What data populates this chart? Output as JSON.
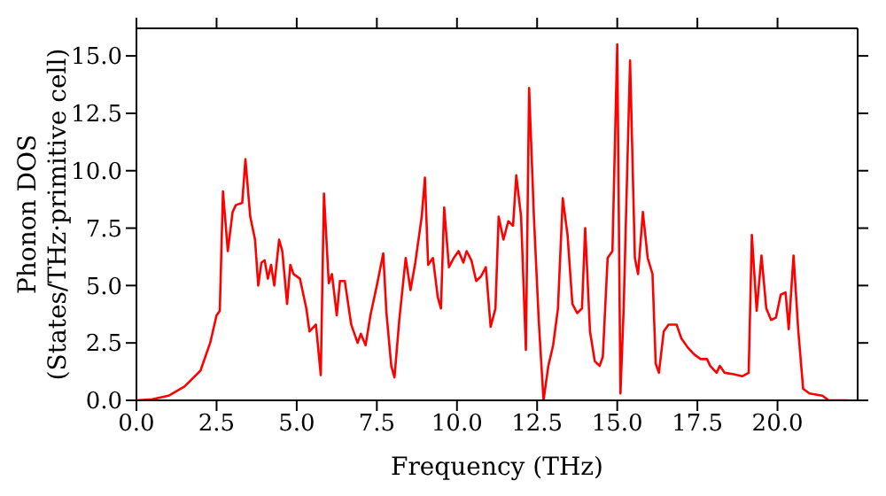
{
  "chart_data": {
    "type": "line",
    "xlabel": "Frequency (THz)",
    "ylabel": "Phonon DOS\n(States/THz·primitive cell)",
    "xlim": [
      0,
      22.5
    ],
    "ylim": [
      0,
      16.2
    ],
    "xticks": [
      {
        "value": 0,
        "label": "0.0"
      },
      {
        "value": 2.5,
        "label": "2.5"
      },
      {
        "value": 5,
        "label": "5.0"
      },
      {
        "value": 7.5,
        "label": "7.5"
      },
      {
        "value": 10,
        "label": "10.0"
      },
      {
        "value": 12.5,
        "label": "12.5"
      },
      {
        "value": 15,
        "label": "15.0"
      },
      {
        "value": 17.5,
        "label": "17.5"
      },
      {
        "value": 20,
        "label": "20.0"
      }
    ],
    "yticks": [
      {
        "value": 0,
        "label": "0.0"
      },
      {
        "value": 2.5,
        "label": "2.5"
      },
      {
        "value": 5,
        "label": "5.0"
      },
      {
        "value": 7.5,
        "label": "7.5"
      },
      {
        "value": 10,
        "label": "10.0"
      },
      {
        "value": 12.5,
        "label": "12.5"
      },
      {
        "value": 15,
        "label": "15.0"
      }
    ],
    "grid": false,
    "legend": false,
    "marker": "none",
    "line_style": "solid",
    "x": [
      0,
      0.5,
      1.0,
      1.5,
      2.0,
      2.3,
      2.5,
      2.6,
      2.7,
      2.85,
      3.0,
      3.1,
      3.3,
      3.4,
      3.55,
      3.7,
      3.8,
      3.9,
      4.0,
      4.1,
      4.2,
      4.3,
      4.45,
      4.55,
      4.7,
      4.8,
      4.9,
      5.1,
      5.3,
      5.4,
      5.6,
      5.75,
      5.85,
      6.0,
      6.1,
      6.25,
      6.35,
      6.5,
      6.7,
      6.9,
      7.0,
      7.15,
      7.3,
      7.5,
      7.7,
      7.8,
      7.95,
      8.05,
      8.2,
      8.4,
      8.55,
      8.7,
      8.9,
      9.0,
      9.1,
      9.25,
      9.4,
      9.5,
      9.6,
      9.75,
      9.9,
      10.05,
      10.2,
      10.3,
      10.45,
      10.6,
      10.75,
      10.9,
      11.05,
      11.2,
      11.3,
      11.45,
      11.6,
      11.75,
      11.85,
      12.0,
      12.15,
      12.25,
      12.4,
      12.55,
      12.7,
      12.85,
      13.0,
      13.15,
      13.3,
      13.45,
      13.6,
      13.75,
      13.9,
      14.0,
      14.15,
      14.3,
      14.45,
      14.55,
      14.7,
      14.85,
      15.0,
      15.1,
      15.2,
      15.4,
      15.55,
      15.65,
      15.8,
      15.95,
      16.1,
      16.2,
      16.3,
      16.45,
      16.6,
      16.85,
      17.0,
      17.2,
      17.4,
      17.6,
      17.8,
      17.9,
      18.1,
      18.2,
      18.35,
      18.6,
      18.9,
      19.1,
      19.2,
      19.35,
      19.5,
      19.65,
      19.8,
      19.95,
      20.1,
      20.25,
      20.35,
      20.5,
      20.65,
      20.8,
      21.0,
      21.4,
      21.6,
      22.2
    ],
    "series": [
      {
        "color": "#ff0000",
        "values": [
          0,
          0.05,
          0.2,
          0.6,
          1.3,
          2.5,
          3.7,
          3.9,
          9.1,
          6.5,
          8.2,
          8.5,
          8.6,
          10.5,
          8.0,
          7.0,
          5.0,
          6.0,
          6.1,
          5.3,
          5.9,
          5.0,
          7.0,
          6.5,
          4.2,
          5.9,
          5.5,
          5.3,
          4.0,
          3.0,
          3.3,
          1.1,
          9.0,
          5.1,
          5.5,
          3.7,
          5.2,
          5.2,
          3.3,
          2.5,
          2.9,
          2.4,
          3.7,
          5.0,
          6.4,
          3.8,
          1.5,
          1.0,
          3.5,
          6.2,
          4.8,
          6.0,
          8.0,
          9.7,
          5.9,
          6.2,
          4.5,
          4.0,
          8.4,
          5.8,
          6.2,
          6.5,
          6.0,
          6.5,
          6.1,
          5.2,
          5.4,
          5.8,
          3.2,
          4.0,
          8.0,
          7.0,
          7.8,
          7.6,
          9.8,
          8.0,
          2.2,
          13.6,
          8.0,
          3.5,
          0.0,
          1.5,
          2.4,
          4.0,
          8.8,
          7.2,
          4.2,
          3.8,
          4.0,
          7.5,
          3.0,
          1.7,
          1.5,
          1.9,
          6.2,
          6.5,
          15.5,
          0.3,
          4.0,
          14.8,
          6.2,
          5.5,
          8.2,
          6.2,
          5.5,
          1.6,
          1.2,
          3.0,
          3.3,
          3.3,
          2.7,
          2.3,
          2.0,
          1.8,
          1.8,
          1.5,
          1.2,
          1.5,
          1.2,
          1.15,
          1.05,
          1.2,
          7.2,
          3.9,
          6.3,
          4.0,
          3.5,
          3.6,
          4.6,
          4.7,
          3.1,
          6.3,
          3.0,
          0.5,
          0.3,
          0.2,
          0,
          0
        ]
      }
    ]
  }
}
